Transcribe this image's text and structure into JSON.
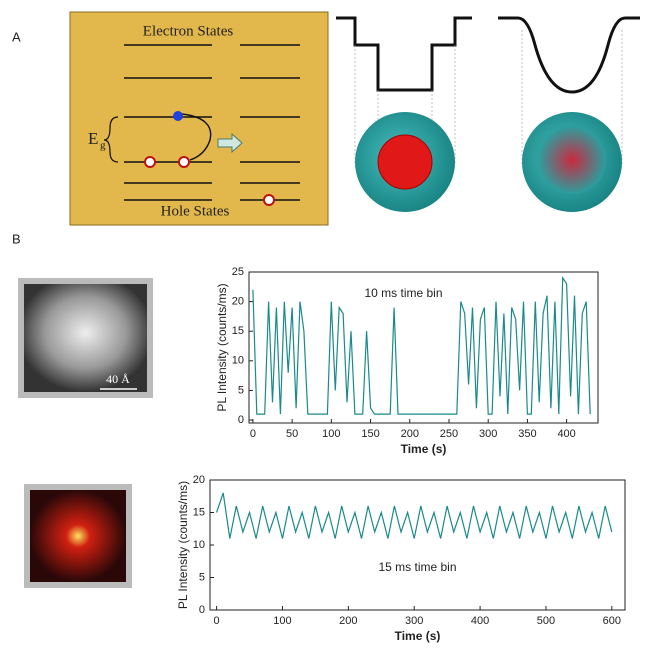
{
  "figure": {
    "panel_labels": [
      "A",
      "B"
    ],
    "diagram": {
      "top_label": "Electron States",
      "bottom_label": "Hole States",
      "gap_symbol": "E",
      "gap_subscript": "g"
    },
    "scale_bar": "40 Å"
  },
  "chart_data": [
    {
      "type": "line",
      "annotation": "10 ms time bin",
      "xlabel": "Time (s)",
      "ylabel": "PL Intensity (counts/ms)",
      "xlim": [
        -5,
        440
      ],
      "ylim": [
        -0.5,
        25
      ],
      "xticks": [
        0,
        50,
        100,
        150,
        200,
        250,
        300,
        350,
        400
      ],
      "yticks": [
        0,
        5,
        10,
        15,
        20,
        25
      ],
      "x": [
        0,
        5,
        10,
        15,
        20,
        25,
        30,
        35,
        40,
        45,
        50,
        55,
        60,
        65,
        70,
        75,
        80,
        85,
        90,
        95,
        100,
        105,
        110,
        115,
        120,
        125,
        130,
        135,
        140,
        145,
        150,
        155,
        160,
        165,
        170,
        175,
        180,
        185,
        190,
        195,
        200,
        205,
        210,
        215,
        220,
        225,
        230,
        235,
        240,
        245,
        250,
        255,
        260,
        265,
        270,
        275,
        280,
        285,
        290,
        295,
        300,
        305,
        310,
        315,
        320,
        325,
        330,
        335,
        340,
        345,
        350,
        355,
        360,
        365,
        370,
        375,
        380,
        385,
        390,
        395,
        400,
        405,
        410,
        415,
        420,
        425,
        430
      ],
      "series": [
        {
          "color": "#1a8a8a",
          "values": [
            22,
            1,
            1,
            1,
            20,
            3,
            19,
            1,
            20,
            8,
            19,
            2,
            20,
            15,
            1,
            1,
            1,
            1,
            1,
            1,
            20,
            5,
            19,
            18,
            3,
            15,
            1,
            1,
            1,
            15,
            2,
            1,
            1,
            1,
            1,
            1,
            19,
            1,
            1,
            1,
            1,
            1,
            1,
            1,
            1,
            1,
            1,
            1,
            1,
            1,
            1,
            1,
            1,
            20,
            18,
            6,
            19,
            2,
            17,
            19,
            1,
            1,
            20,
            4,
            18,
            1,
            19,
            17,
            5,
            20,
            1,
            1,
            20,
            3,
            18,
            21,
            2,
            20,
            1,
            24,
            23,
            4,
            21,
            1,
            18,
            20,
            1
          ]
        }
      ]
    },
    {
      "type": "line",
      "annotation": "15 ms time bin",
      "xlabel": "Time (s)",
      "ylabel": "PL Intensity (counts/ms)",
      "xlim": [
        -10,
        620
      ],
      "ylim": [
        0,
        20
      ],
      "xticks": [
        0,
        100,
        200,
        300,
        400,
        500,
        600
      ],
      "yticks": [
        0,
        5,
        10,
        15,
        20
      ],
      "x": [
        0,
        10,
        20,
        30,
        40,
        50,
        60,
        70,
        80,
        90,
        100,
        110,
        120,
        130,
        140,
        150,
        160,
        170,
        180,
        190,
        200,
        210,
        220,
        230,
        240,
        250,
        260,
        270,
        280,
        290,
        300,
        310,
        320,
        330,
        340,
        350,
        360,
        370,
        380,
        390,
        400,
        410,
        420,
        430,
        440,
        450,
        460,
        470,
        480,
        490,
        500,
        510,
        520,
        530,
        540,
        550,
        560,
        570,
        580,
        590,
        600
      ],
      "series": [
        {
          "color": "#1a8a8a",
          "values": [
            15,
            18,
            11,
            16,
            12,
            15,
            11,
            16,
            12,
            15,
            11,
            16,
            12,
            15,
            11,
            16,
            12,
            15,
            11,
            16,
            12,
            15,
            11,
            16,
            12,
            15,
            11,
            16,
            12,
            15,
            11,
            16,
            12,
            15,
            11,
            16,
            12,
            15,
            11,
            16,
            12,
            15,
            11,
            16,
            12,
            15,
            11,
            16,
            12,
            15,
            11,
            16,
            12,
            15,
            11,
            16,
            12,
            15,
            11,
            16,
            12
          ]
        }
      ]
    }
  ]
}
